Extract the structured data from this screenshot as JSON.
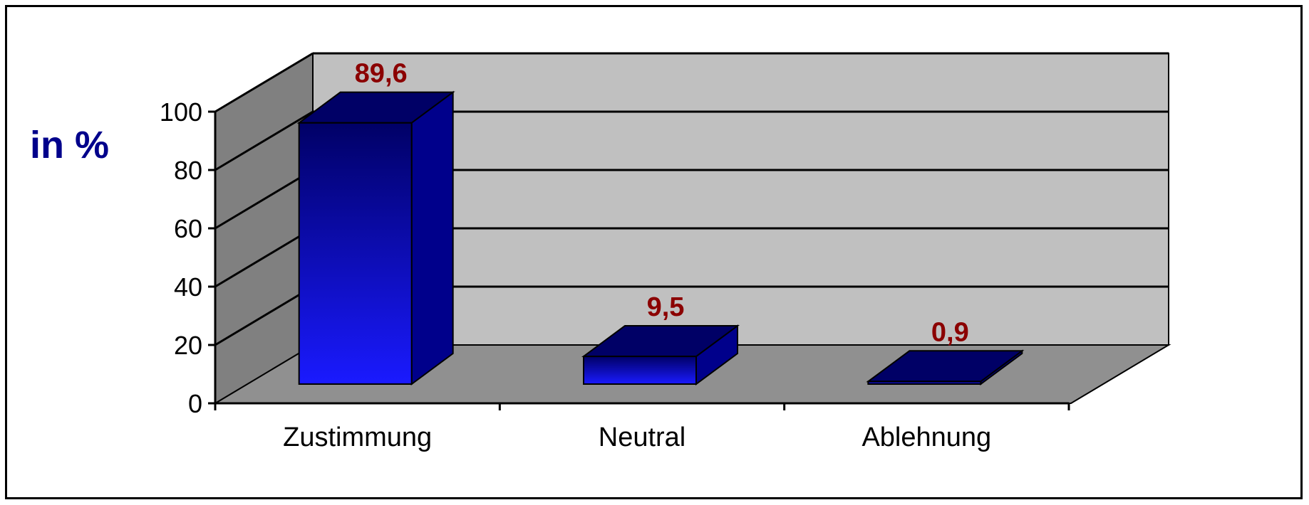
{
  "chart_data": {
    "type": "bar",
    "style": "3d",
    "title": "",
    "xlabel": "",
    "ylabel": "in %",
    "categories": [
      "Zustimmung",
      "Neutral",
      "Ablehnung"
    ],
    "series": [
      {
        "values": [
          89.6,
          9.5,
          0.9
        ],
        "data_labels": [
          "89,6",
          "9,5",
          "0,9"
        ]
      }
    ],
    "ylim": [
      0,
      100
    ],
    "yticks": [
      0,
      20,
      40,
      60,
      80,
      100
    ],
    "grid": true,
    "legend": "none",
    "colors": {
      "bar_front_bottom": "#1a1aff",
      "bar_front_top": "#000066",
      "bar_top": "#000066",
      "bar_side": "#00008b",
      "back_wall": "#c0c0c0",
      "side_wall": "#808080",
      "floor": "#909090",
      "data_label": "#8b0000",
      "ylabel": "#00008b"
    }
  }
}
